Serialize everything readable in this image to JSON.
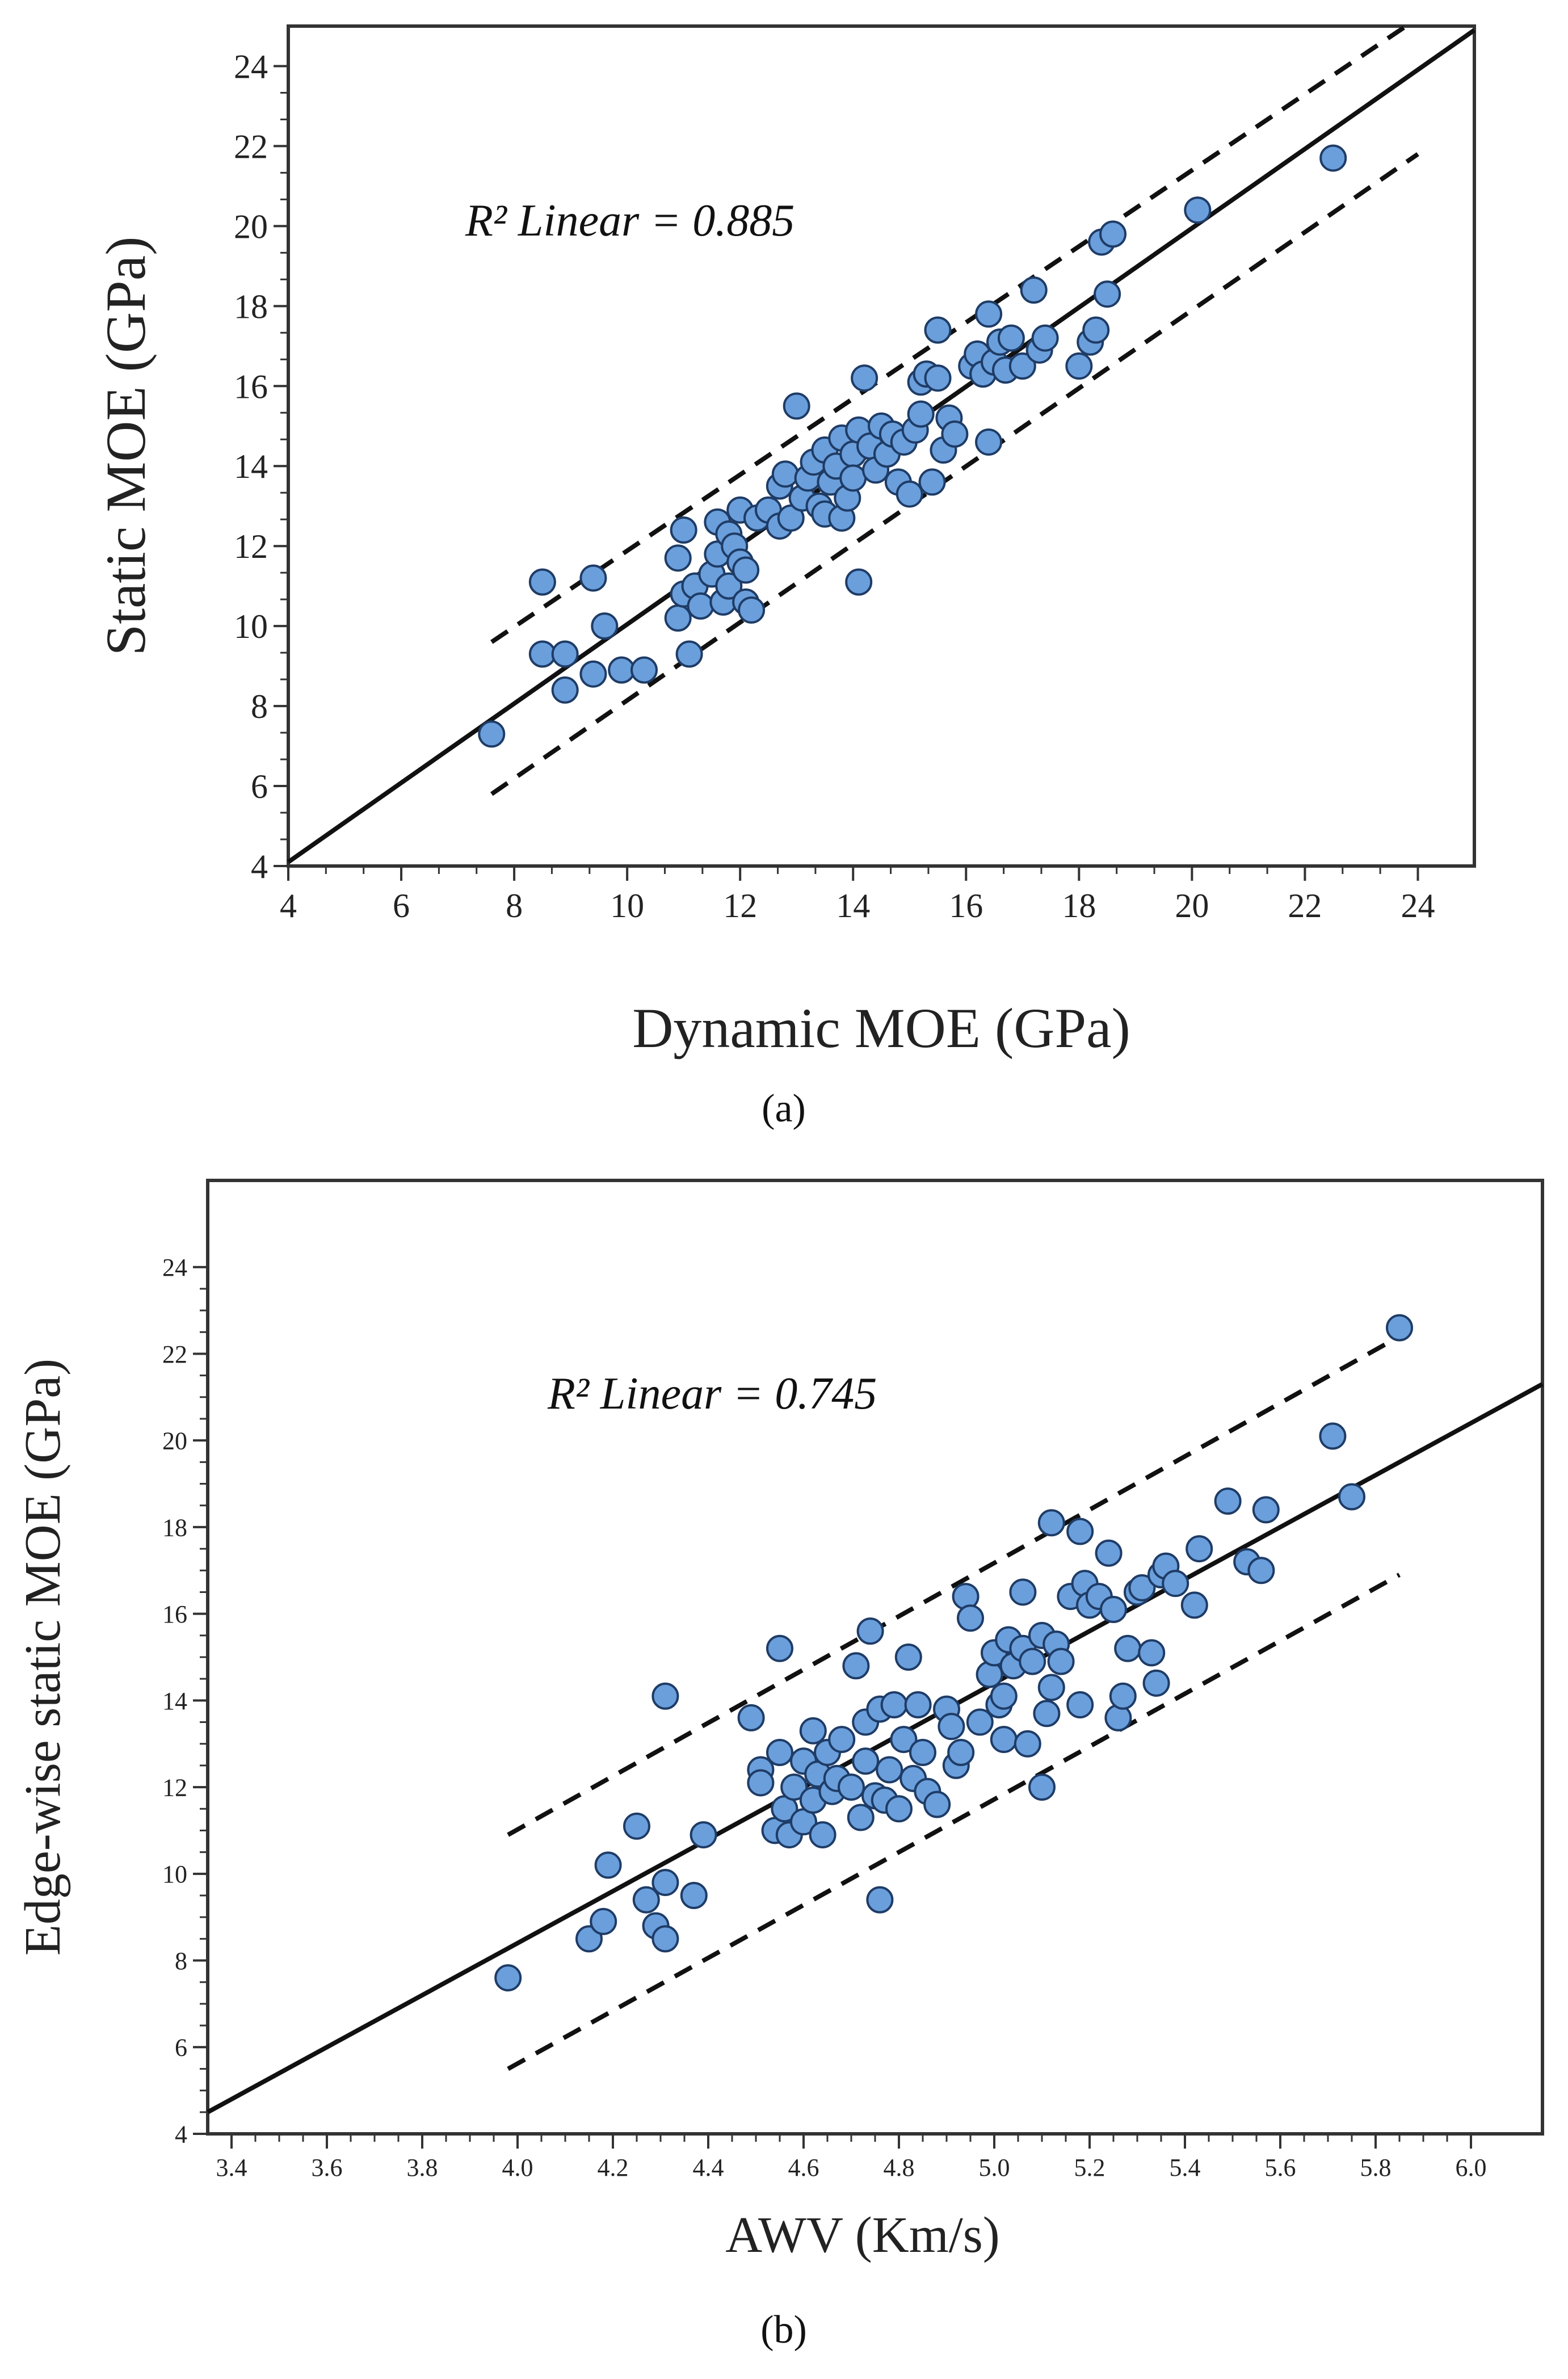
{
  "figure": {
    "panel_a_label": "(a)",
    "panel_b_label": "(b)",
    "panel_a_mark": "(a)"
  },
  "colors": {
    "point_fill": "#6a9fdc",
    "point_stroke": "#1f3c66",
    "line": "#111111",
    "axis": "#333333"
  },
  "chart_data": [
    {
      "type": "scatter",
      "title": "",
      "xlabel": "Dynamic MOE (GPa)",
      "ylabel": "Static MOE (GPa)",
      "xlim": [
        4,
        25
      ],
      "ylim": [
        4,
        25
      ],
      "xticks": [
        4,
        6,
        8,
        10,
        12,
        14,
        16,
        18,
        20,
        22,
        24
      ],
      "yticks": [
        4,
        6,
        8,
        10,
        12,
        14,
        16,
        18,
        20,
        22,
        24
      ],
      "xtick_labels": [
        "4",
        "6",
        "8",
        "10",
        "12",
        "14",
        "16",
        "18",
        "20",
        "22",
        "24"
      ],
      "ytick_labels": [
        "4",
        "6",
        "8",
        "10",
        "12",
        "14",
        "16",
        "18",
        "20",
        "22",
        "24"
      ],
      "annotation": "R² Linear = 0.885",
      "fit_line": [
        [
          4,
          4.1
        ],
        [
          25,
          24.9
        ]
      ],
      "upper_band": [
        [
          7.6,
          9.6
        ],
        [
          24,
          25.2
        ]
      ],
      "lower_band": [
        [
          7.6,
          5.8
        ],
        [
          24,
          21.8
        ]
      ],
      "points": [
        [
          7.6,
          7.3
        ],
        [
          8.5,
          11.1
        ],
        [
          8.5,
          9.3
        ],
        [
          8.9,
          9.3
        ],
        [
          8.9,
          8.4
        ],
        [
          9.4,
          11.2
        ],
        [
          9.4,
          8.8
        ],
        [
          9.6,
          10.0
        ],
        [
          9.9,
          8.9
        ],
        [
          10.3,
          8.9
        ],
        [
          10.9,
          10.2
        ],
        [
          10.9,
          11.7
        ],
        [
          11.0,
          12.4
        ],
        [
          11.0,
          10.8
        ],
        [
          11.1,
          9.3
        ],
        [
          11.2,
          11.0
        ],
        [
          11.3,
          10.5
        ],
        [
          11.5,
          11.3
        ],
        [
          11.6,
          12.6
        ],
        [
          11.6,
          11.8
        ],
        [
          11.7,
          10.6
        ],
        [
          11.8,
          12.3
        ],
        [
          11.8,
          11.0
        ],
        [
          11.9,
          12.0
        ],
        [
          12.0,
          12.9
        ],
        [
          12.0,
          11.6
        ],
        [
          12.1,
          10.6
        ],
        [
          12.1,
          11.4
        ],
        [
          12.2,
          10.4
        ],
        [
          12.3,
          12.7
        ],
        [
          12.5,
          12.9
        ],
        [
          12.7,
          13.5
        ],
        [
          12.7,
          12.5
        ],
        [
          12.8,
          13.8
        ],
        [
          12.9,
          12.7
        ],
        [
          13.0,
          15.5
        ],
        [
          13.1,
          13.2
        ],
        [
          13.2,
          13.7
        ],
        [
          13.3,
          14.1
        ],
        [
          13.4,
          13.0
        ],
        [
          13.5,
          14.4
        ],
        [
          13.5,
          12.8
        ],
        [
          13.6,
          13.6
        ],
        [
          13.7,
          14.0
        ],
        [
          13.8,
          12.7
        ],
        [
          13.8,
          14.7
        ],
        [
          13.9,
          13.2
        ],
        [
          14.0,
          14.3
        ],
        [
          14.0,
          13.7
        ],
        [
          14.1,
          11.1
        ],
        [
          14.1,
          14.9
        ],
        [
          14.2,
          16.2
        ],
        [
          14.3,
          14.5
        ],
        [
          14.4,
          13.9
        ],
        [
          14.5,
          15.0
        ],
        [
          14.6,
          14.3
        ],
        [
          14.7,
          14.8
        ],
        [
          14.8,
          13.6
        ],
        [
          14.9,
          14.6
        ],
        [
          15.0,
          13.3
        ],
        [
          15.1,
          14.9
        ],
        [
          15.2,
          16.1
        ],
        [
          15.2,
          15.3
        ],
        [
          15.3,
          16.3
        ],
        [
          15.4,
          13.6
        ],
        [
          15.5,
          17.4
        ],
        [
          15.5,
          16.2
        ],
        [
          15.6,
          14.4
        ],
        [
          15.7,
          15.2
        ],
        [
          15.8,
          14.8
        ],
        [
          16.1,
          16.5
        ],
        [
          16.2,
          16.8
        ],
        [
          16.3,
          16.3
        ],
        [
          16.4,
          17.8
        ],
        [
          16.4,
          14.6
        ],
        [
          16.5,
          16.6
        ],
        [
          16.6,
          17.1
        ],
        [
          16.7,
          16.4
        ],
        [
          16.8,
          17.2
        ],
        [
          17.0,
          16.5
        ],
        [
          17.2,
          18.4
        ],
        [
          17.3,
          16.9
        ],
        [
          17.4,
          17.2
        ],
        [
          18.0,
          16.5
        ],
        [
          18.2,
          17.1
        ],
        [
          18.3,
          17.4
        ],
        [
          18.4,
          19.6
        ],
        [
          18.5,
          18.3
        ],
        [
          18.6,
          19.8
        ],
        [
          20.1,
          20.4
        ],
        [
          22.5,
          21.7
        ]
      ]
    },
    {
      "type": "scatter",
      "title": "",
      "xlabel": "AWV (Km/s)",
      "ylabel": "Edge-wise static MOE (GPa)",
      "xlim": [
        3.35,
        6.15
      ],
      "ylim": [
        4,
        26
      ],
      "xticks": [
        3.4,
        3.6,
        3.8,
        4.0,
        4.2,
        4.4,
        4.6,
        4.8,
        5.0,
        5.2,
        5.4,
        5.6,
        5.8,
        6.0
      ],
      "yticks": [
        4,
        6,
        8,
        10,
        12,
        14,
        16,
        18,
        20,
        22,
        24
      ],
      "xtick_labels": [
        "3.4",
        "3.6",
        "3.8",
        "4.0",
        "4.2",
        "4.4",
        "4.6",
        "4.8",
        "5.0",
        "5.2",
        "5.4",
        "5.6",
        "5.8",
        "6.0"
      ],
      "ytick_labels": [
        "4",
        "6",
        "8",
        "10",
        "12",
        "14",
        "16",
        "18",
        "20",
        "22",
        "24"
      ],
      "annotation": "R² Linear = 0.745",
      "fit_line": [
        [
          3.35,
          4.5
        ],
        [
          6.15,
          21.3
        ]
      ],
      "upper_band": [
        [
          3.98,
          10.9
        ],
        [
          5.85,
          22.4
        ]
      ],
      "lower_band": [
        [
          3.98,
          5.5
        ],
        [
          5.85,
          16.9
        ]
      ],
      "points": [
        [
          3.98,
          7.6
        ],
        [
          4.15,
          8.5
        ],
        [
          4.18,
          8.9
        ],
        [
          4.19,
          10.2
        ],
        [
          4.25,
          11.1
        ],
        [
          4.27,
          9.4
        ],
        [
          4.29,
          8.8
        ],
        [
          4.31,
          8.5
        ],
        [
          4.31,
          9.8
        ],
        [
          4.31,
          14.1
        ],
        [
          4.37,
          9.5
        ],
        [
          4.39,
          10.9
        ],
        [
          4.49,
          13.6
        ],
        [
          4.51,
          12.4
        ],
        [
          4.51,
          12.1
        ],
        [
          4.54,
          11.0
        ],
        [
          4.55,
          15.2
        ],
        [
          4.55,
          12.8
        ],
        [
          4.56,
          11.5
        ],
        [
          4.57,
          10.9
        ],
        [
          4.58,
          12.0
        ],
        [
          4.6,
          11.2
        ],
        [
          4.6,
          12.6
        ],
        [
          4.62,
          13.3
        ],
        [
          4.62,
          11.7
        ],
        [
          4.63,
          12.3
        ],
        [
          4.64,
          10.9
        ],
        [
          4.65,
          12.8
        ],
        [
          4.66,
          11.9
        ],
        [
          4.67,
          12.2
        ],
        [
          4.68,
          13.1
        ],
        [
          4.7,
          12.0
        ],
        [
          4.71,
          14.8
        ],
        [
          4.72,
          11.3
        ],
        [
          4.73,
          13.5
        ],
        [
          4.73,
          12.6
        ],
        [
          4.74,
          15.6
        ],
        [
          4.75,
          11.8
        ],
        [
          4.76,
          9.4
        ],
        [
          4.76,
          13.8
        ],
        [
          4.77,
          11.7
        ],
        [
          4.78,
          12.4
        ],
        [
          4.79,
          13.9
        ],
        [
          4.8,
          11.5
        ],
        [
          4.81,
          13.1
        ],
        [
          4.82,
          15.0
        ],
        [
          4.83,
          12.2
        ],
        [
          4.84,
          13.9
        ],
        [
          4.85,
          12.8
        ],
        [
          4.86,
          11.9
        ],
        [
          4.88,
          11.6
        ],
        [
          4.9,
          13.8
        ],
        [
          4.91,
          13.4
        ],
        [
          4.92,
          12.5
        ],
        [
          4.93,
          12.8
        ],
        [
          4.94,
          16.4
        ],
        [
          4.95,
          15.9
        ],
        [
          4.97,
          13.5
        ],
        [
          4.99,
          14.6
        ],
        [
          5.0,
          15.1
        ],
        [
          5.01,
          13.9
        ],
        [
          5.02,
          13.1
        ],
        [
          5.02,
          14.1
        ],
        [
          5.03,
          15.4
        ],
        [
          5.04,
          14.8
        ],
        [
          5.06,
          16.5
        ],
        [
          5.06,
          15.2
        ],
        [
          5.07,
          13.0
        ],
        [
          5.08,
          14.9
        ],
        [
          5.1,
          12.0
        ],
        [
          5.1,
          15.5
        ],
        [
          5.11,
          13.7
        ],
        [
          5.12,
          18.1
        ],
        [
          5.12,
          14.3
        ],
        [
          5.13,
          15.3
        ],
        [
          5.14,
          14.9
        ],
        [
          5.16,
          16.4
        ],
        [
          5.18,
          13.9
        ],
        [
          5.18,
          17.9
        ],
        [
          5.19,
          16.7
        ],
        [
          5.2,
          16.2
        ],
        [
          5.22,
          16.4
        ],
        [
          5.24,
          17.4
        ],
        [
          5.25,
          16.1
        ],
        [
          5.26,
          13.6
        ],
        [
          5.27,
          14.1
        ],
        [
          5.28,
          15.2
        ],
        [
          5.3,
          16.5
        ],
        [
          5.31,
          16.6
        ],
        [
          5.33,
          15.1
        ],
        [
          5.34,
          14.4
        ],
        [
          5.35,
          16.9
        ],
        [
          5.36,
          17.1
        ],
        [
          5.38,
          16.7
        ],
        [
          5.42,
          16.2
        ],
        [
          5.43,
          17.5
        ],
        [
          5.49,
          18.6
        ],
        [
          5.53,
          17.2
        ],
        [
          5.56,
          17.0
        ],
        [
          5.57,
          18.4
        ],
        [
          5.71,
          20.1
        ],
        [
          5.75,
          18.7
        ],
        [
          5.85,
          22.6
        ]
      ]
    }
  ]
}
